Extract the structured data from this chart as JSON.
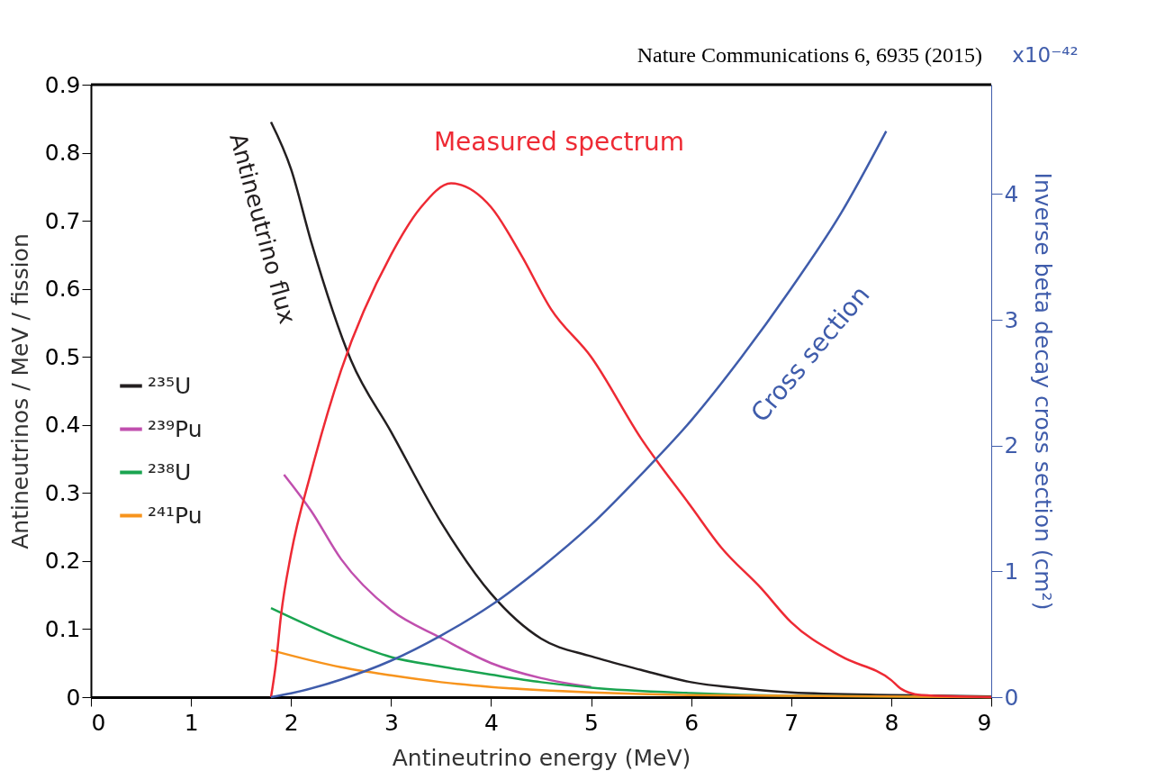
{
  "chart_data": {
    "type": "line",
    "xlabel": "Antineutrino energy (MeV)",
    "ylabel": "Antineutrinos / MeV / fission",
    "y2label": "Inverse beta decay cross section (cm²)",
    "xlim": [
      0,
      9
    ],
    "xticks": [
      0,
      1,
      2,
      3,
      4,
      5,
      6,
      7,
      8,
      9
    ],
    "ylim": [
      0,
      0.9
    ],
    "yticks": [
      0,
      0.1,
      0.2,
      0.3,
      0.4,
      0.5,
      0.6,
      0.7,
      0.8,
      0.9
    ],
    "y2lim": [
      0,
      4.87
    ],
    "y2ticks": [
      0,
      1,
      2,
      3,
      4
    ],
    "grid": false,
    "legend": "left",
    "marker": "none",
    "line_style": "solid",
    "annotations": [
      "Nature Communications 6, 6935 (2015)",
      "Antineutrino flux",
      "x10⁻⁴²"
    ],
    "series": [
      {
        "name": "²³⁵U",
        "color": "#231f20",
        "x": [
          1.8,
          2.0,
          2.2,
          2.6,
          3.0,
          3.5,
          4.0,
          4.5,
          5.0,
          5.5,
          6.0,
          6.5,
          7.0,
          8.0,
          9.0
        ],
        "values": [
          0.845,
          0.776,
          0.67,
          0.495,
          0.39,
          0.257,
          0.152,
          0.086,
          0.06,
          0.04,
          0.022,
          0.013,
          0.007,
          0.003,
          0.001
        ]
      },
      {
        "name": "²³⁹Pu",
        "color": "#c04fae",
        "x": [
          1.93,
          2.2,
          2.5,
          3.0,
          3.5,
          4.0,
          4.5,
          5.0
        ],
        "values": [
          0.327,
          0.274,
          0.203,
          0.128,
          0.087,
          0.05,
          0.028,
          0.015
        ]
      },
      {
        "name": "²³⁸U",
        "color": "#1aa450",
        "x": [
          1.8,
          2.5,
          3.0,
          3.5,
          4.0,
          4.5,
          5.0,
          6.0,
          7.0,
          9.0
        ],
        "values": [
          0.131,
          0.085,
          0.059,
          0.045,
          0.033,
          0.022,
          0.014,
          0.006,
          0.002,
          0.0
        ]
      },
      {
        "name": "²⁴¹Pu",
        "color": "#f7941d",
        "x": [
          1.8,
          2.5,
          3.0,
          3.5,
          4.0,
          5.0,
          6.0,
          9.0
        ],
        "values": [
          0.069,
          0.044,
          0.032,
          0.022,
          0.015,
          0.007,
          0.003,
          0.0
        ]
      },
      {
        "name": "Measured spectrum",
        "color": "#ee2a34",
        "x": [
          1.8,
          1.85,
          1.9,
          2.0,
          2.2,
          2.5,
          3.0,
          3.3,
          3.6,
          4.0,
          4.3,
          4.6,
          5.0,
          5.5,
          6.0,
          6.3,
          6.7,
          7.0,
          7.5,
          8.0,
          8.1,
          8.3,
          9.0
        ],
        "values": [
          0.0,
          0.05,
          0.12,
          0.21,
          0.33,
          0.48,
          0.65,
          0.72,
          0.755,
          0.72,
          0.65,
          0.57,
          0.5,
          0.38,
          0.28,
          0.22,
          0.16,
          0.11,
          0.06,
          0.025,
          0.012,
          0.003,
          0.0
        ]
      },
      {
        "name": "Cross section",
        "color": "#3f5cab",
        "axis": "y2",
        "x": [
          1.8,
          2.0,
          2.5,
          3.0,
          3.5,
          4.0,
          4.5,
          5.0,
          5.5,
          6.0,
          6.5,
          7.0,
          7.5,
          7.95
        ],
        "values": [
          0.0,
          0.03,
          0.14,
          0.29,
          0.49,
          0.73,
          1.03,
          1.37,
          1.77,
          2.2,
          2.7,
          3.25,
          3.85,
          4.5
        ]
      }
    ]
  }
}
